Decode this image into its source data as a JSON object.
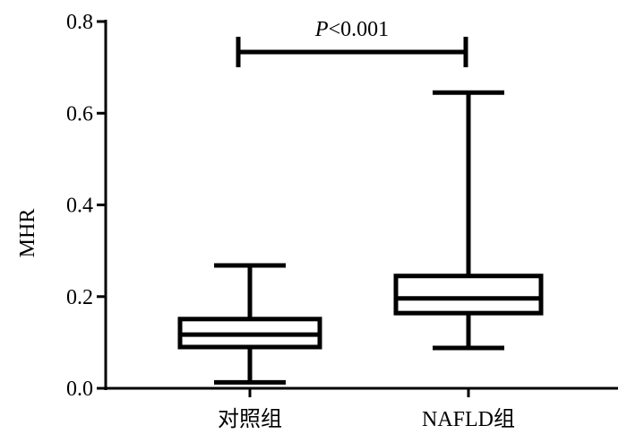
{
  "chart_data": {
    "type": "box",
    "ylabel": "MHR",
    "xlabel": "",
    "ylim": [
      0,
      0.8
    ],
    "yticks": [
      "0.0",
      "0.2",
      "0.4",
      "0.6",
      "0.8"
    ],
    "categories": [
      "对照组",
      "NAFLD组"
    ],
    "boxes": [
      {
        "category": "对照组",
        "min": 0.013,
        "q1": 0.09,
        "median": 0.117,
        "q3": 0.151,
        "max": 0.268
      },
      {
        "category": "NAFLD组",
        "min": 0.088,
        "q1": 0.164,
        "median": 0.196,
        "q3": 0.245,
        "max": 0.645
      }
    ],
    "annotation": {
      "italic": "P",
      "text": "<0.001"
    },
    "grid": false,
    "color": "#000000"
  }
}
